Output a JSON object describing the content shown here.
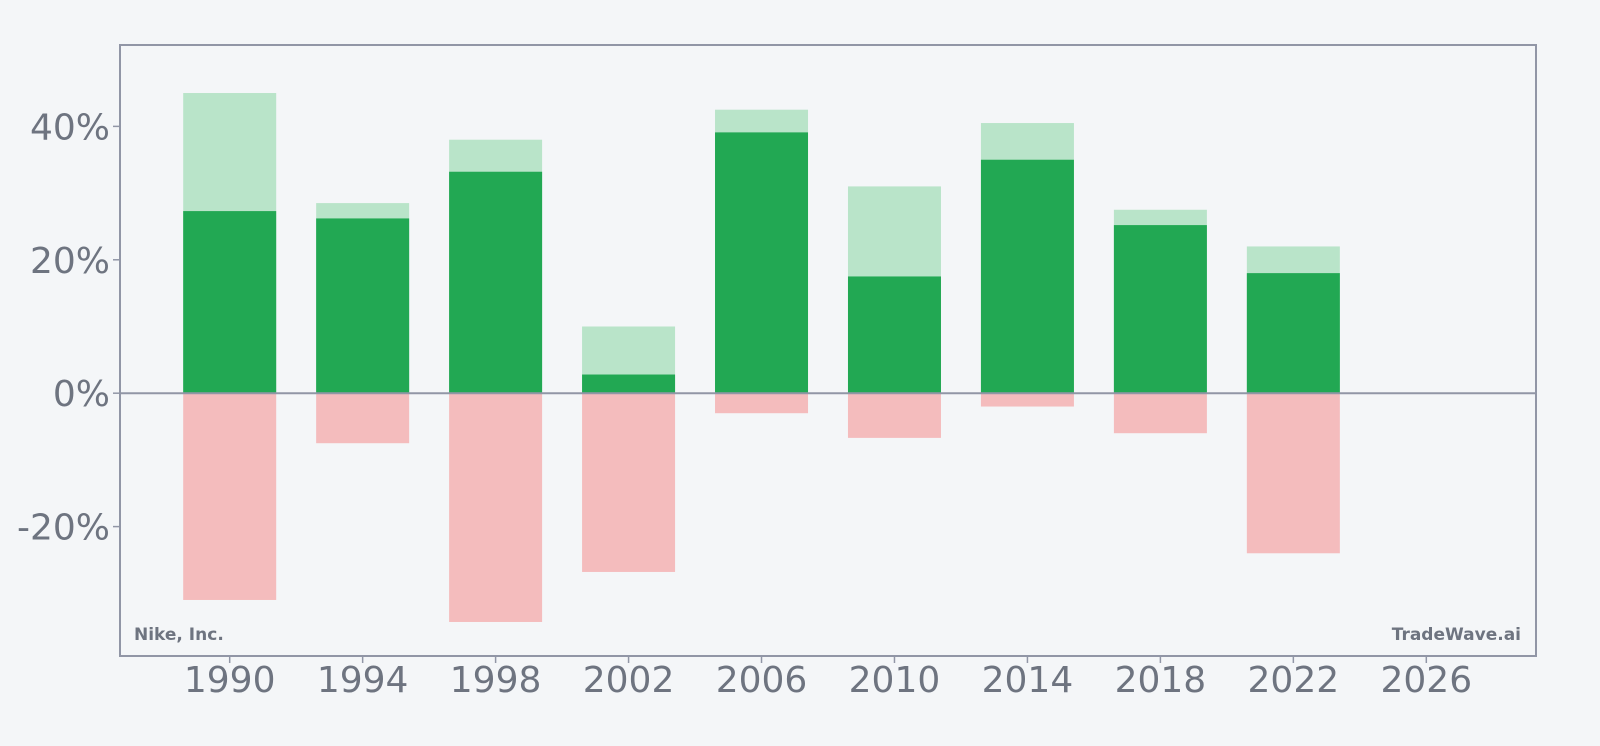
{
  "chart_data": {
    "type": "bar",
    "x": [
      1990,
      1994,
      1998,
      2002,
      2006,
      2010,
      2014,
      2018,
      2022
    ],
    "series": [
      {
        "role": "high",
        "values": [
          45.0,
          28.5,
          38.0,
          10.0,
          42.5,
          31.0,
          40.5,
          27.5,
          22.0
        ]
      },
      {
        "role": "close",
        "values": [
          27.3,
          26.2,
          33.2,
          2.8,
          39.1,
          17.5,
          35.0,
          25.2,
          18.0
        ]
      },
      {
        "role": "low",
        "values": [
          -31.0,
          -7.5,
          -34.3,
          -26.8,
          -3.0,
          -6.7,
          -2.0,
          -6.0,
          -24.0
        ]
      }
    ],
    "xlim": [
      1986.7,
      2029.3
    ],
    "ylim": [
      -39.4,
      52.2
    ],
    "xticks": [
      1990,
      1994,
      1998,
      2002,
      2006,
      2010,
      2014,
      2018,
      2022,
      2026
    ],
    "yticks": [
      40,
      20,
      0,
      -20
    ],
    "ytick_labels": [
      "40%",
      "20%",
      "0%",
      "-20%"
    ],
    "grid": false,
    "colors": {
      "close": "#22a853",
      "high": "#b9e4c9",
      "low": "#f4bcbd",
      "axis": "#9196a6",
      "text": "#6e7480",
      "background": "#f4f6f8"
    }
  },
  "watermark_left": "Nike, Inc.",
  "watermark_right": "TradeWave.ai"
}
